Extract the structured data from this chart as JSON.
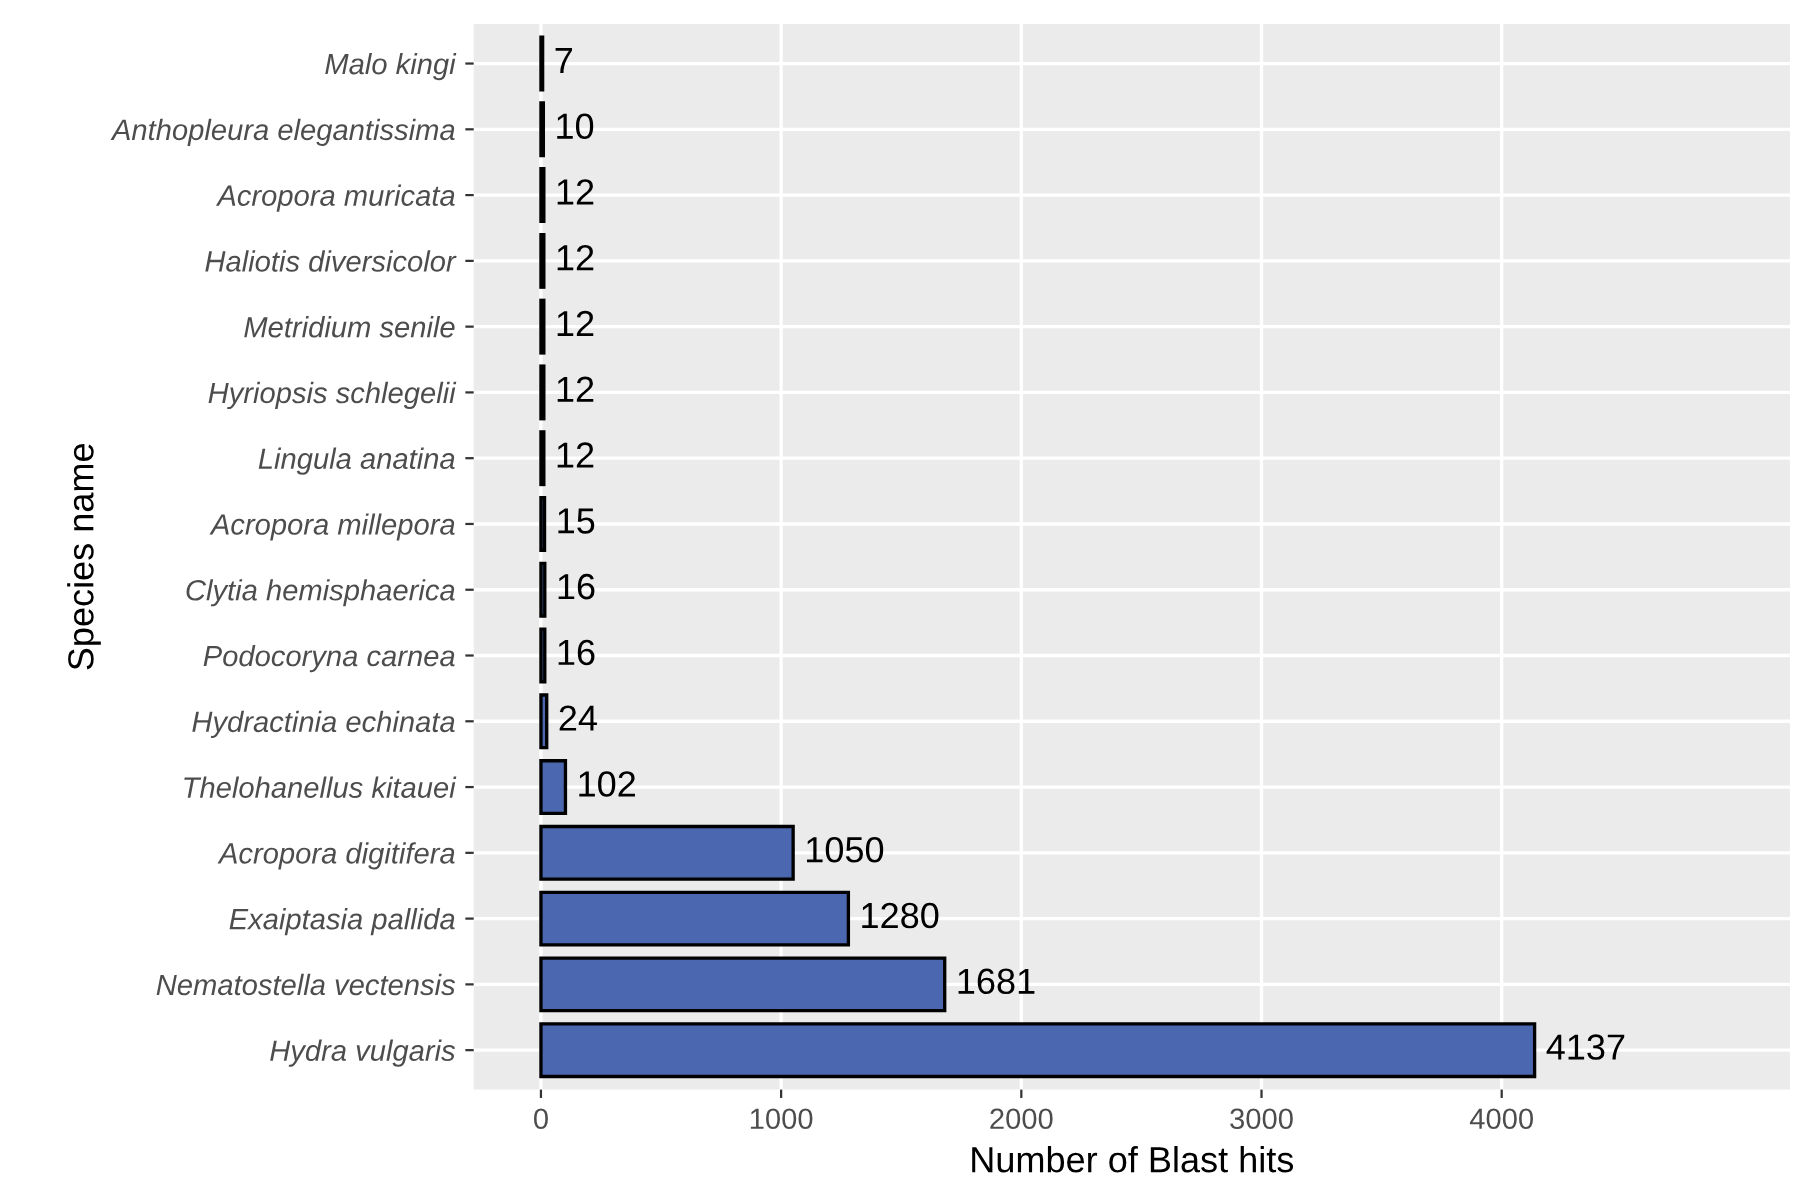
{
  "chart_data": {
    "type": "bar",
    "orientation": "horizontal",
    "xlabel": "Number of Blast hits",
    "ylabel": "Species name",
    "categories": [
      "Malo kingi",
      "Anthopleura elegantissima",
      "Acropora muricata",
      "Haliotis diversicolor",
      "Metridium senile",
      "Hyriopsis schlegelii",
      "Lingula anatina",
      "Acropora millepora",
      "Clytia hemisphaerica",
      "Podocoryna carnea",
      "Hydractinia echinata",
      "Thelohanellus kitauei",
      "Acropora digitifera",
      "Exaiptasia pallida",
      "Nematostella vectensis",
      "Hydra vulgaris"
    ],
    "values": [
      7,
      10,
      12,
      12,
      12,
      12,
      12,
      15,
      16,
      16,
      24,
      102,
      1050,
      1280,
      1681,
      4137
    ],
    "color": "#4a67b0",
    "xlim": [
      -280,
      5200
    ],
    "xticks": [
      0,
      1000,
      2000,
      3000,
      4000
    ],
    "grid": true,
    "data_labels": true
  }
}
